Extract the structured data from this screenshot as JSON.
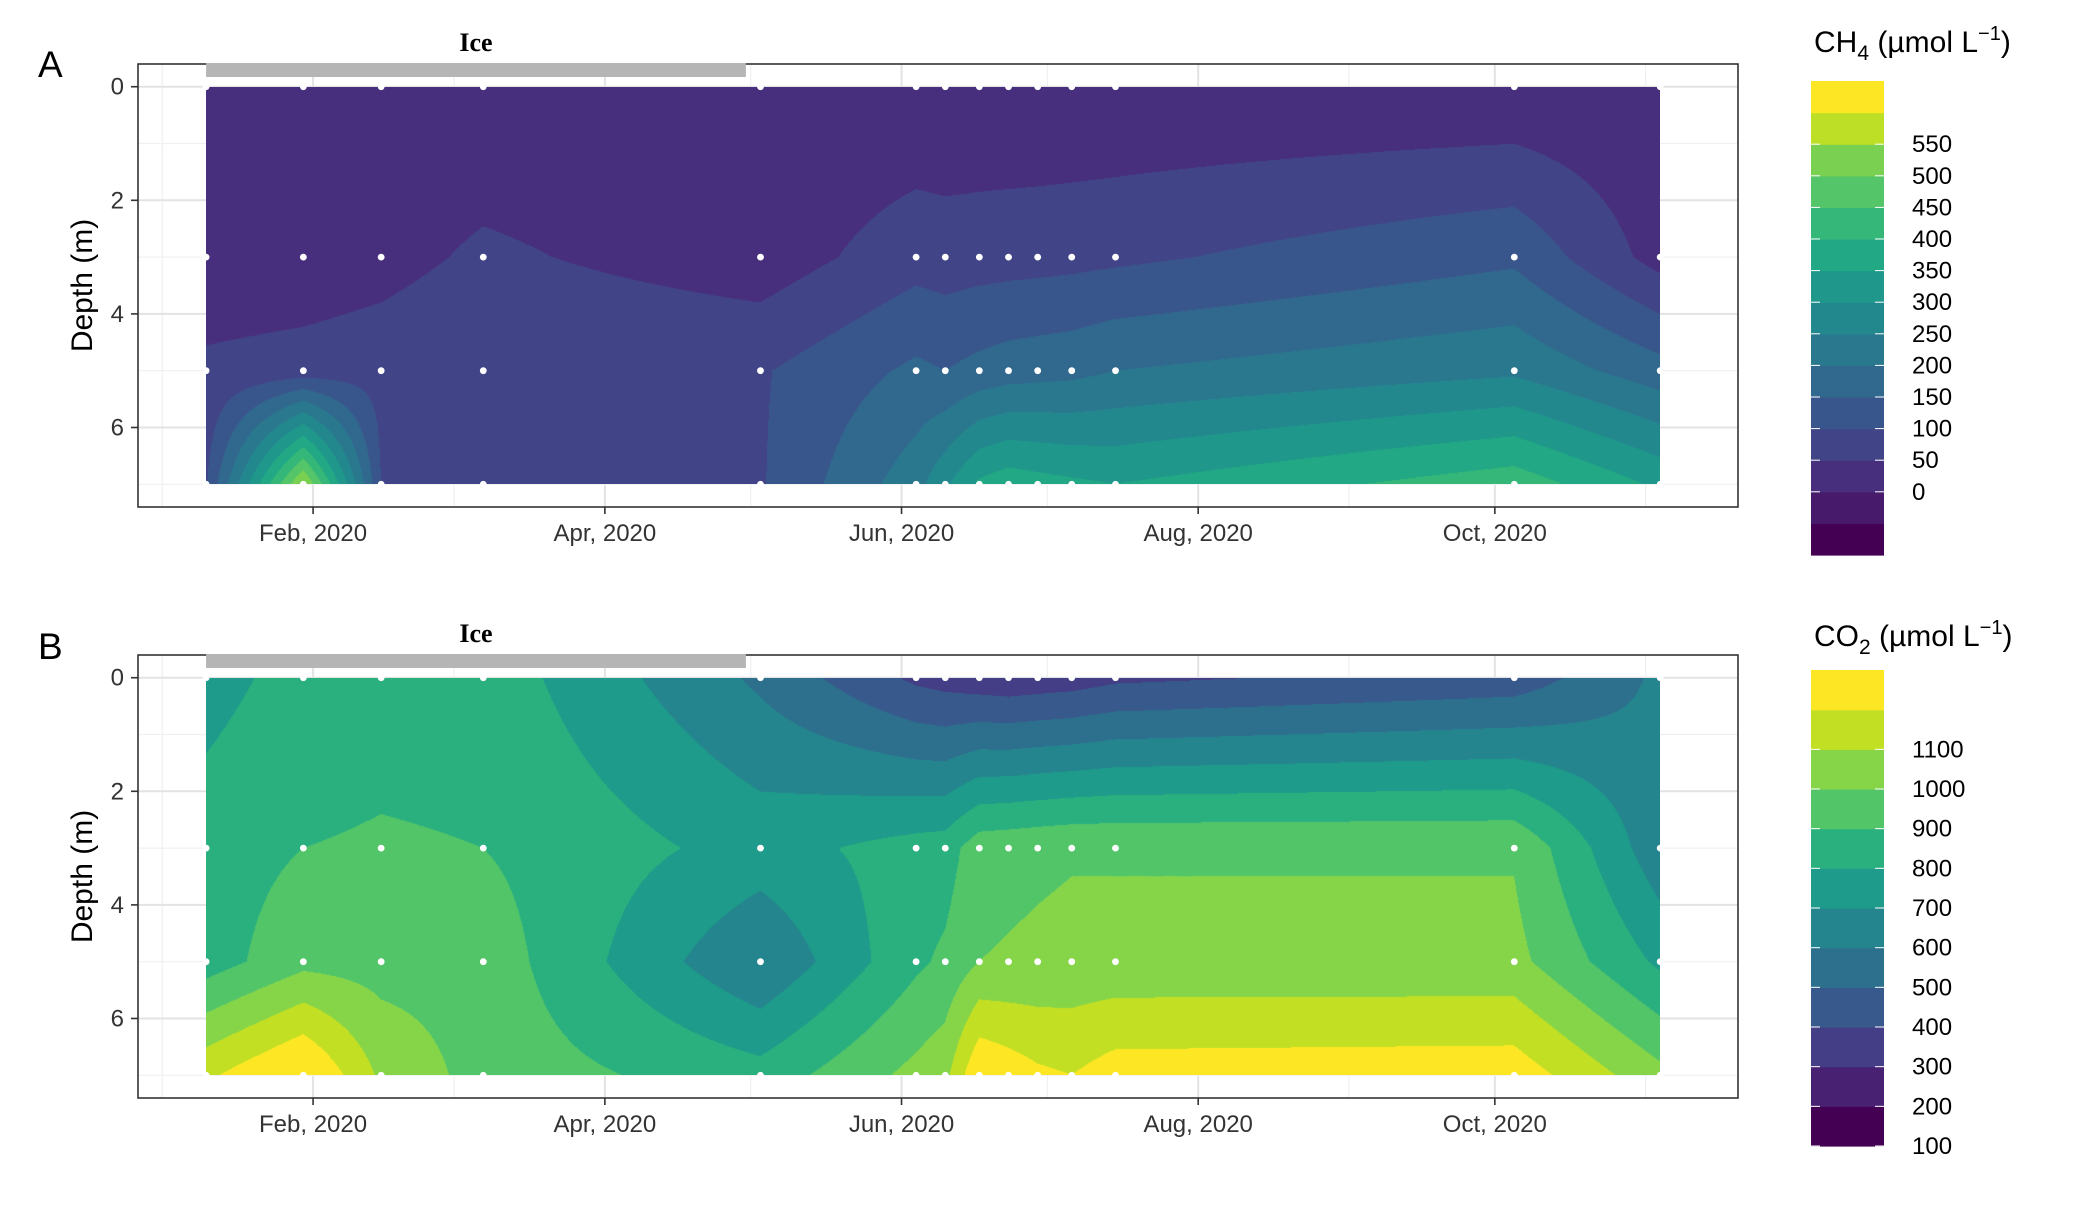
{
  "chart_data": [
    {
      "panel": "A",
      "type": "heatmap",
      "ice_label": "Ice",
      "ice_period": [
        "2020-01-10",
        "2020-04-30"
      ],
      "ylabel": "Depth (m)",
      "xlabel": "",
      "x_ticks": [
        "Feb, 2020",
        "Apr, 2020",
        "Jun, 2020",
        "Aug, 2020",
        "Oct, 2020"
      ],
      "y_ticks": [
        "0",
        "2",
        "4",
        "6"
      ],
      "ylim": [
        7.4,
        -0.4
      ],
      "legend": {
        "title_main": "CH",
        "title_sub": "4",
        "title_unit": " (µmol L",
        "title_exp": "−1",
        "title_close": ")",
        "labels": [
          "550",
          "500",
          "450",
          "400",
          "350",
          "300",
          "250",
          "200",
          "150",
          "100",
          "50",
          "0"
        ],
        "colors": [
          "#440154",
          "#481a6c",
          "#472f7d",
          "#414487",
          "#39568c",
          "#31688e",
          "#2a788e",
          "#23888e",
          "#1f988b",
          "#22a884",
          "#35b779",
          "#54c568",
          "#7ad151",
          "#bddf26",
          "#fde725"
        ]
      },
      "sample_dates": [
        "2020-01-10",
        "2020-01-30",
        "2020-02-15",
        "2020-03-07",
        "2020-05-03",
        "2020-06-04",
        "2020-06-10",
        "2020-06-17",
        "2020-06-23",
        "2020-06-29",
        "2020-07-06",
        "2020-07-15",
        "2020-10-05",
        "2020-11-04"
      ],
      "depths": [
        0,
        3,
        5,
        7
      ],
      "values": [
        [
          5,
          5,
          5,
          5,
          5,
          5,
          5,
          5,
          5,
          5,
          5,
          5,
          5,
          5
        ],
        [
          15,
          18,
          30,
          60,
          20,
          80,
          75,
          78,
          80,
          82,
          85,
          90,
          140,
          30
        ],
        [
          60,
          70,
          80,
          100,
          95,
          160,
          150,
          165,
          175,
          180,
          185,
          200,
          240,
          170
        ],
        [
          95,
          560,
          100,
          95,
          95,
          230,
          290,
          360,
          380,
          370,
          360,
          350,
          430,
          340
        ]
      ]
    },
    {
      "panel": "B",
      "type": "heatmap",
      "ice_label": "Ice",
      "ice_period": [
        "2020-01-10",
        "2020-04-30"
      ],
      "ylabel": "Depth (m)",
      "xlabel": "",
      "x_ticks": [
        "Feb, 2020",
        "Apr, 2020",
        "Jun, 2020",
        "Aug, 2020",
        "Oct, 2020"
      ],
      "y_ticks": [
        "0",
        "2",
        "4",
        "6"
      ],
      "ylim": [
        7.4,
        -0.4
      ],
      "legend": {
        "title_main": "CO",
        "title_sub": "2",
        "title_unit": " (µmol L",
        "title_exp": "−1",
        "title_close": ")",
        "labels": [
          "1100",
          "1000",
          "900",
          "800",
          "700",
          "600",
          "500",
          "400",
          "300",
          "200",
          "100"
        ],
        "colors": [
          "#440154",
          "#482173",
          "#433e85",
          "#38598c",
          "#2d708e",
          "#25858e",
          "#1e9b8a",
          "#2ab07f",
          "#52c569",
          "#86d549",
          "#c2df23",
          "#fde725"
        ]
      },
      "sample_dates": [
        "2020-01-10",
        "2020-01-30",
        "2020-02-15",
        "2020-03-07",
        "2020-05-03",
        "2020-06-04",
        "2020-06-10",
        "2020-06-17",
        "2020-06-23",
        "2020-06-29",
        "2020-07-06",
        "2020-07-15",
        "2020-10-05",
        "2020-11-04"
      ],
      "depths": [
        0,
        3,
        5,
        7
      ],
      "values": [
        [
          560,
          640,
          660,
          660,
          380,
          180,
          160,
          140,
          130,
          140,
          150,
          180,
          240,
          420
        ],
        [
          650,
          700,
          710,
          700,
          560,
          640,
          650,
          760,
          770,
          780,
          790,
          790,
          790,
          430
        ],
        [
          650,
          770,
          760,
          760,
          400,
          680,
          720,
          800,
          810,
          820,
          830,
          830,
          830,
          580
        ],
        [
          980,
          1130,
          880,
          760,
          640,
          830,
          870,
          1100,
          1060,
          1020,
          1000,
          1050,
          1060,
          830
        ]
      ]
    }
  ]
}
